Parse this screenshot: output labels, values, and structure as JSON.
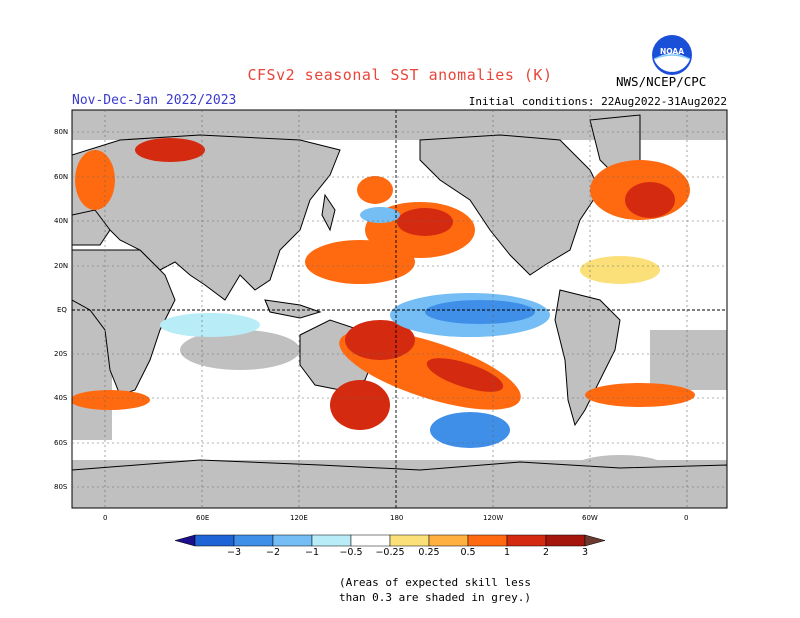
{
  "header": {
    "title": "CFSv2 seasonal SST anomalies (K)",
    "season": "Nov-Dec-Jan 2022/2023",
    "initial_conditions": "Initial conditions: 22Aug2022-31Aug2022",
    "agency": "NWS/NCEP/CPC",
    "logo_text": "NOAA"
  },
  "map": {
    "lat_labels": [
      "80N",
      "60N",
      "40N",
      "20N",
      "EQ",
      "20S",
      "40S",
      "60S",
      "80S"
    ],
    "lon_labels": [
      "0",
      "60E",
      "120E",
      "180",
      "120W",
      "60W",
      "0"
    ],
    "no_skill_color": "#c0c0c0",
    "land_color": "#c0c0c0"
  },
  "legend": {
    "ticks": [
      "−3",
      "−2",
      "−1",
      "−0.5",
      "−0.25",
      "0.25",
      "0.5",
      "1",
      "2",
      "3"
    ],
    "colors": [
      "#1b0f8c",
      "#1e64d6",
      "#3f8ee8",
      "#74bdf5",
      "#b8ecf7",
      "#ffffff",
      "#fbe07a",
      "#ffb040",
      "#ff6a10",
      "#d42a10",
      "#a4160c",
      "#6a3a2e"
    ]
  },
  "footnote": {
    "line1": "(Areas of expected skill less",
    "line2": "than 0.3 are shaded in grey.)"
  }
}
